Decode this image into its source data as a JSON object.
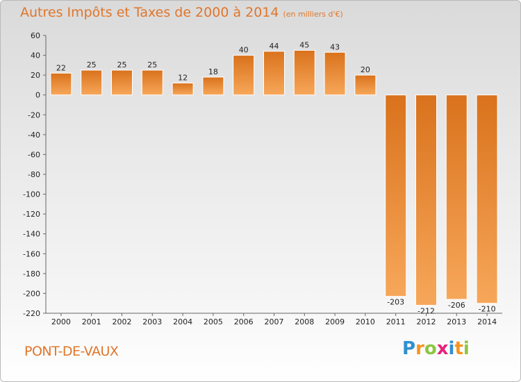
{
  "header": {
    "title": "Autres Impôts et Taxes de 2000 à 2014",
    "subtitle": "(en milliers d'€)"
  },
  "footer": {
    "town": "PONT-DE-VAUX",
    "logo_letters": [
      "P",
      "r",
      "o",
      "x",
      "i",
      "t",
      "i"
    ],
    "logo_colors": [
      "#2f8fd0",
      "#f7941d",
      "#8dc63f",
      "#e9207a",
      "#2f8fd0",
      "#f7941d",
      "#8dc63f"
    ]
  },
  "colors": {
    "bar_top": "#d9721c",
    "bar_bottom": "#f7a75a",
    "axis": "#666666",
    "grid": "#cfcfcf"
  },
  "chart_data": {
    "type": "bar",
    "title": "Autres Impôts et Taxes de 2000 à 2014",
    "subtitle": "(en milliers d'€)",
    "xlabel": "",
    "ylabel": "",
    "categories": [
      "2000",
      "2001",
      "2002",
      "2003",
      "2004",
      "2005",
      "2006",
      "2007",
      "2008",
      "2009",
      "2010",
      "2011",
      "2012",
      "2013",
      "2014"
    ],
    "values": [
      22,
      25,
      25,
      25,
      12,
      18,
      40,
      44,
      45,
      43,
      20,
      -203,
      -212,
      -206,
      -210
    ],
    "ylim": [
      -220,
      60
    ],
    "yticks": [
      60,
      40,
      20,
      0,
      -20,
      -40,
      -60,
      -80,
      -100,
      -120,
      -140,
      -160,
      -180,
      -200,
      -220
    ],
    "grid": false,
    "legend": "none"
  }
}
